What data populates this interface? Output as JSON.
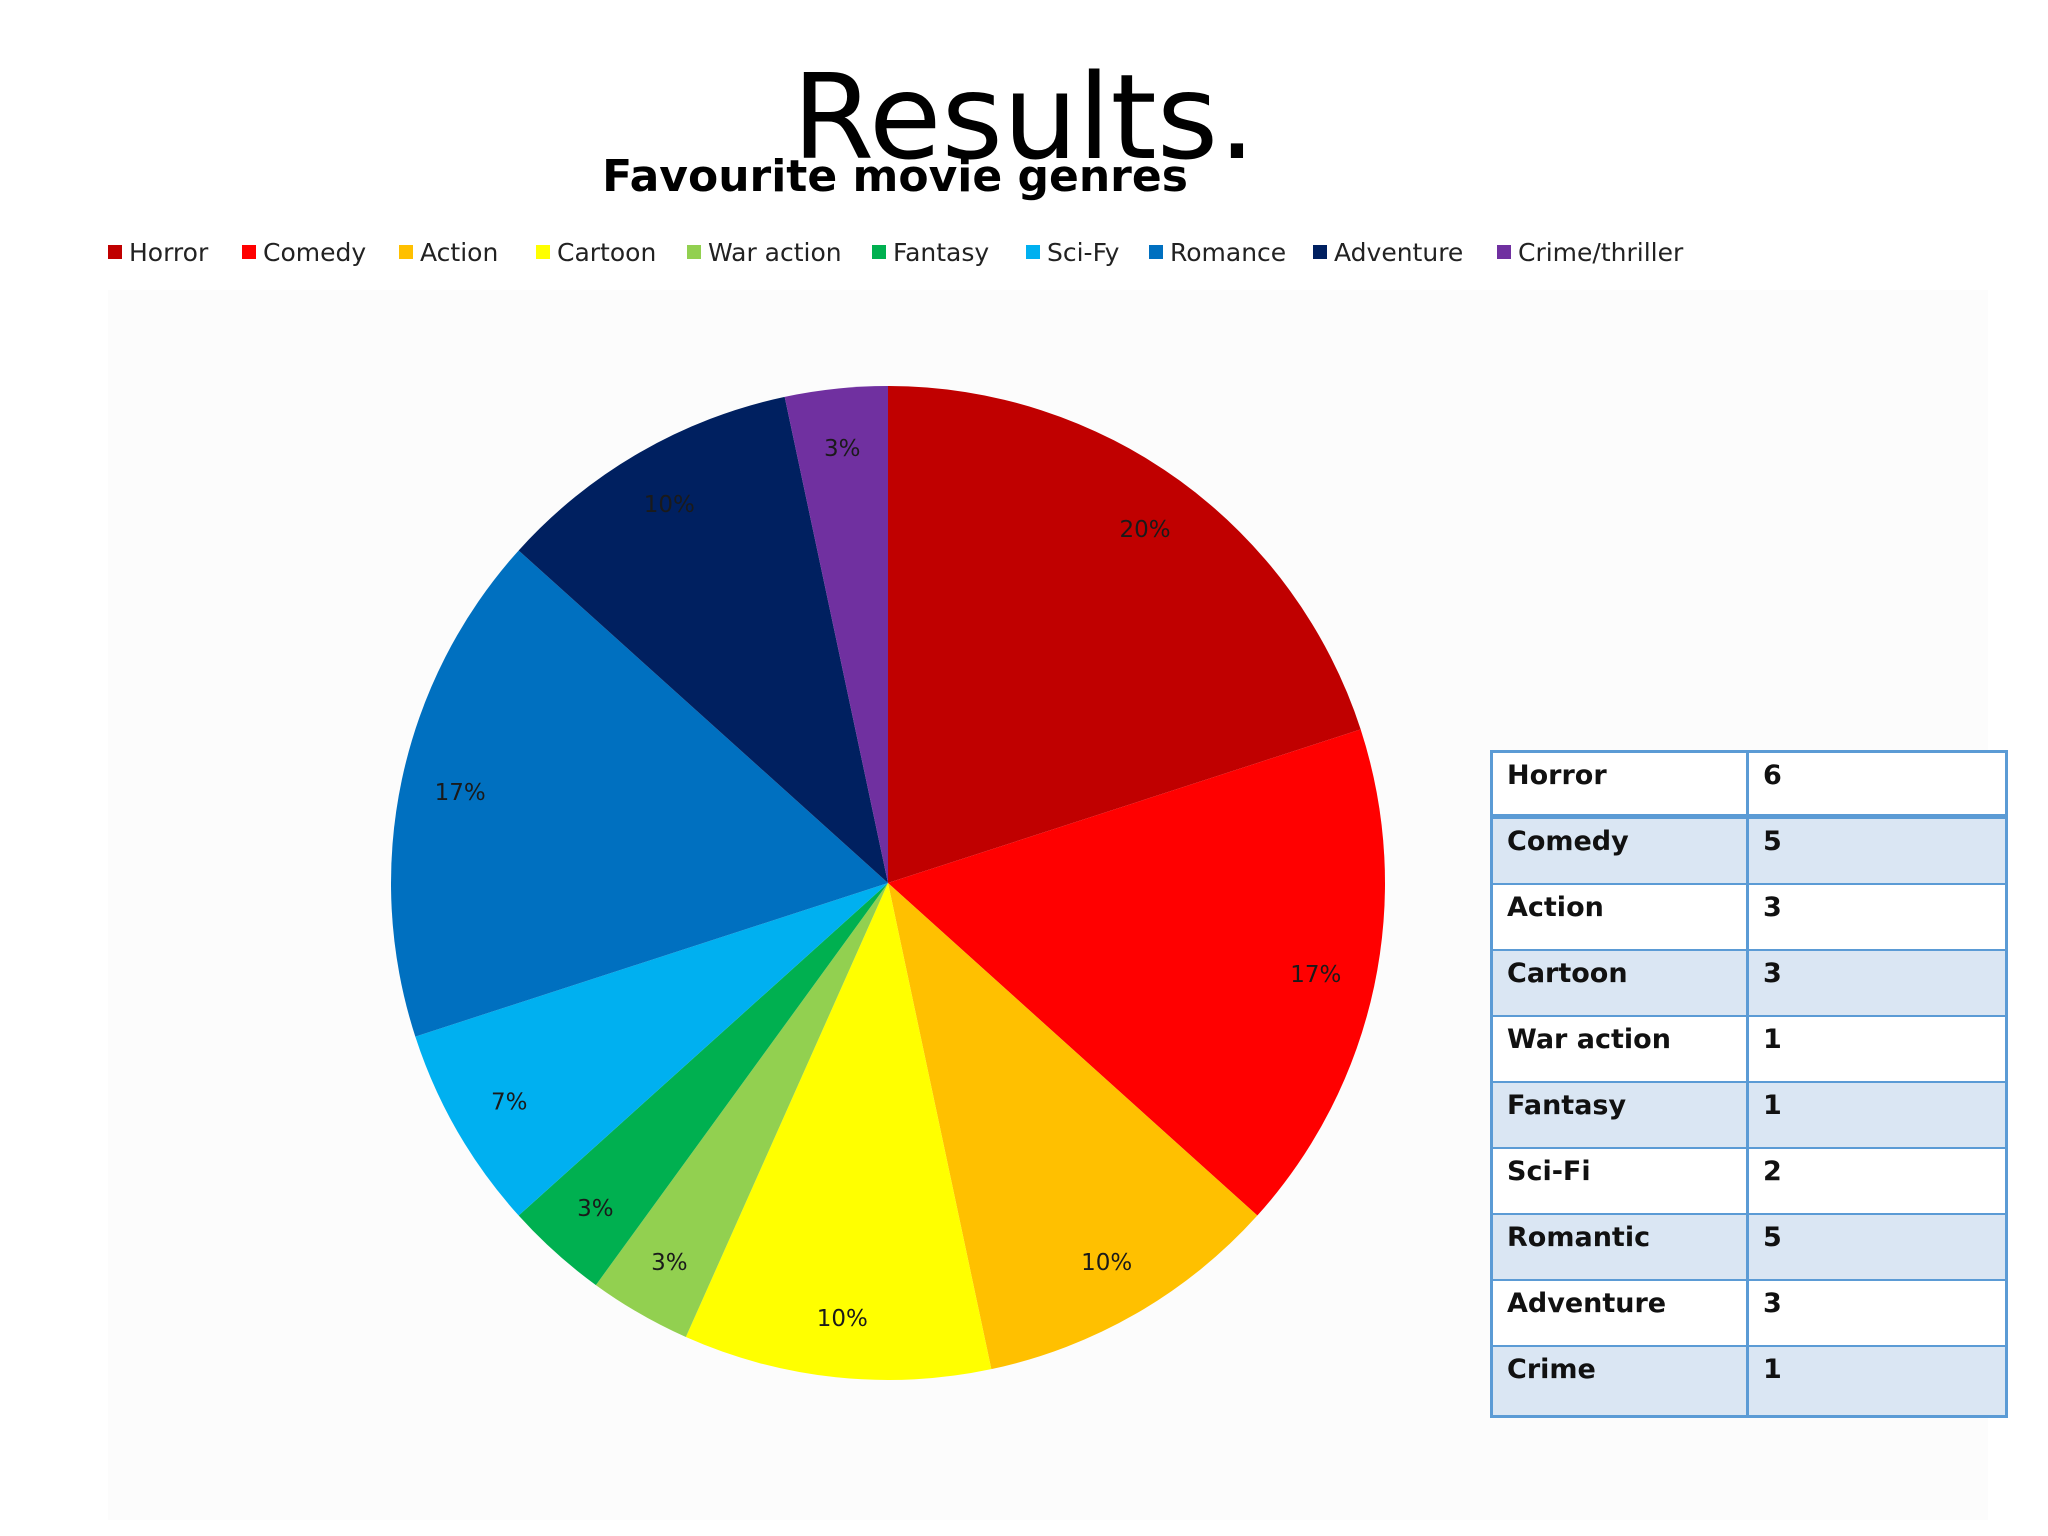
{
  "slide": {
    "title": "Results."
  },
  "chart_data": {
    "type": "pie",
    "title": "Favourite movie genres",
    "legend_position": "top",
    "categories": [
      "Horror",
      "Comedy",
      "Action",
      "Cartoon",
      "War action",
      "Fantasy",
      "Sci-Fy",
      "Romance",
      "Adventure",
      "Crime/thriller"
    ],
    "values": [
      6,
      5,
      3,
      3,
      1,
      1,
      2,
      5,
      3,
      1
    ],
    "labels": [
      "20%",
      "17%",
      "10%",
      "10%",
      "3%",
      "3%",
      "7%",
      "17%",
      "10%",
      "3%"
    ],
    "colors": [
      "#c00000",
      "#ff0000",
      "#ffc000",
      "#ffff00",
      "#92d050",
      "#00b050",
      "#00b0f0",
      "#0070c0",
      "#002060",
      "#7030a0"
    ]
  },
  "table": {
    "rows": [
      {
        "name": "Horror",
        "value": "6"
      },
      {
        "name": "Comedy",
        "value": "5"
      },
      {
        "name": "Action",
        "value": "3"
      },
      {
        "name": "Cartoon",
        "value": "3"
      },
      {
        "name": "War action",
        "value": "1"
      },
      {
        "name": "Fantasy",
        "value": "1"
      },
      {
        "name": "Sci-Fi",
        "value": "2"
      },
      {
        "name": "Romantic",
        "value": "5"
      },
      {
        "name": "Adventure",
        "value": "3"
      },
      {
        "name": "Crime",
        "value": "1"
      }
    ]
  }
}
